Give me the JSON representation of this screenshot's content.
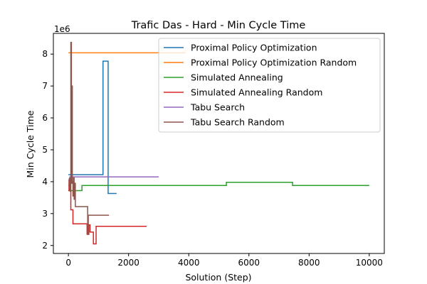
{
  "chart_data": {
    "type": "line",
    "title": "Trafic Das - Hard - Min Cycle Time",
    "xlabel": "Solution (Step)",
    "ylabel": "Min Cycle Time",
    "y_offset_label": "1e6",
    "xlim": [
      -500,
      10500
    ],
    "ylim": [
      1.75,
      8.65
    ],
    "x_ticks": [
      0,
      2000,
      4000,
      6000,
      8000,
      10000
    ],
    "x_tick_labels": [
      "0",
      "2000",
      "4000",
      "6000",
      "8000",
      "10000"
    ],
    "y_ticks": [
      2,
      3,
      4,
      5,
      6,
      7,
      8
    ],
    "y_tick_labels": [
      "2",
      "3",
      "4",
      "5",
      "6",
      "7",
      "8"
    ],
    "y_scale_note": "values in units of 1e6",
    "grid": false,
    "legend_position": "top-right",
    "series": [
      {
        "name": "Proximal Policy Optimization",
        "color": "#1f77b4",
        "x": [
          0,
          1150,
          1150,
          1320,
          1320,
          1600
        ],
        "y": [
          4.22,
          4.22,
          7.78,
          7.78,
          3.63,
          3.63
        ]
      },
      {
        "name": "Proximal Policy Optimization Random",
        "color": "#ff7f0e",
        "x": [
          0,
          3900
        ],
        "y": [
          8.04,
          8.04
        ]
      },
      {
        "name": "Simulated Annealing",
        "color": "#2ca02c",
        "x": [
          0,
          50,
          50,
          450,
          450,
          5250,
          5250,
          7450,
          7450,
          10000
        ],
        "y": [
          3.72,
          3.72,
          3.72,
          3.72,
          3.88,
          3.88,
          3.98,
          3.98,
          3.88,
          3.88
        ],
        "step": "post"
      },
      {
        "name": "Simulated Annealing Random",
        "color": "#d62728",
        "x": [
          0,
          20,
          40,
          60,
          80,
          100,
          110,
          150,
          170,
          600,
          620,
          660,
          680,
          720,
          800,
          830,
          900,
          920,
          2600
        ],
        "y": [
          3.72,
          4.05,
          3.72,
          3.72,
          3.12,
          3.12,
          3.12,
          2.68,
          2.68,
          2.68,
          2.35,
          2.35,
          2.65,
          2.42,
          2.42,
          2.05,
          2.05,
          2.6,
          2.6
        ],
        "step": "post"
      },
      {
        "name": "Tabu Search",
        "color": "#9467bd",
        "x": [
          0,
          50,
          50,
          3000
        ],
        "y": [
          4.05,
          4.05,
          4.15,
          4.15
        ],
        "step": "post"
      },
      {
        "name": "Tabu Search Random",
        "color": "#8c564b",
        "x": [
          0,
          30,
          60,
          80,
          100,
          120,
          130,
          150,
          170,
          190,
          210,
          230,
          250,
          600,
          640,
          660,
          1350
        ],
        "y": [
          3.9,
          4.1,
          3.7,
          8.37,
          3.95,
          7.0,
          4.0,
          3.55,
          4.12,
          3.45,
          3.95,
          3.22,
          3.22,
          3.22,
          2.35,
          2.95,
          2.95
        ],
        "step": "post"
      }
    ]
  }
}
